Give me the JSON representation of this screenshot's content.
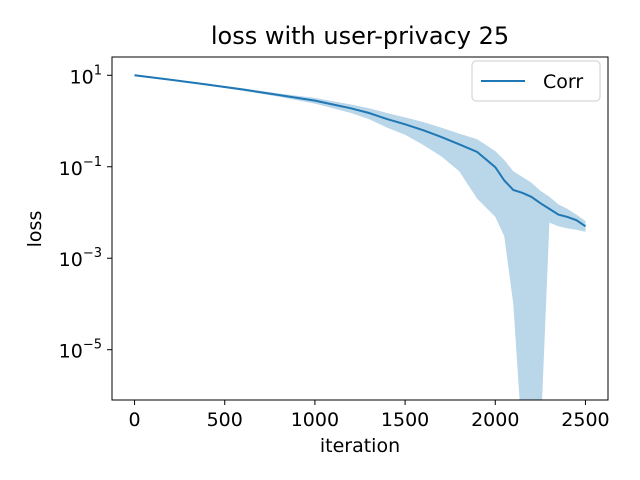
{
  "chart_data": {
    "type": "line",
    "title": "loss with user-privacy  25",
    "xlabel": "iteration",
    "ylabel": "loss",
    "xlim": [
      -125,
      2625
    ],
    "ylim_log10": [
      -6.1,
      1.4
    ],
    "y_scale": "log",
    "x_ticks": [
      0,
      500,
      1000,
      1500,
      2000,
      2500
    ],
    "x_tick_labels": [
      "0",
      "500",
      "1000",
      "1500",
      "2000",
      "2500"
    ],
    "y_ticks_log10": [
      1,
      -1,
      -3,
      -5
    ],
    "y_tick_labels": [
      {
        "base": "10",
        "exp": "1"
      },
      {
        "base": "10",
        "exp": "−1"
      },
      {
        "base": "10",
        "exp": "−3"
      },
      {
        "base": "10",
        "exp": "−5"
      }
    ],
    "grid": false,
    "legend": {
      "position": "top-right",
      "entries": [
        "Corr"
      ]
    },
    "series": [
      {
        "name": "Corr",
        "color": "#1f77b4",
        "band_color": "#a9cce3",
        "x": [
          0,
          200,
          400,
          600,
          800,
          1000,
          1100,
          1200,
          1300,
          1400,
          1500,
          1600,
          1700,
          1800,
          1900,
          2000,
          2050,
          2100,
          2150,
          2200,
          2250,
          2300,
          2350,
          2400,
          2450,
          2500
        ],
        "mean": [
          10.0,
          8.0,
          6.3,
          4.9,
          3.7,
          2.8,
          2.3,
          1.9,
          1.5,
          1.1,
          0.85,
          0.63,
          0.45,
          0.31,
          0.21,
          0.098,
          0.05,
          0.031,
          0.027,
          0.022,
          0.016,
          0.012,
          0.009,
          0.008,
          0.0068,
          0.005
        ],
        "upper": [
          10.5,
          8.3,
          6.6,
          5.2,
          4.0,
          3.2,
          2.7,
          2.3,
          1.9,
          1.5,
          1.2,
          0.95,
          0.72,
          0.53,
          0.4,
          0.22,
          0.14,
          0.08,
          0.06,
          0.045,
          0.03,
          0.022,
          0.015,
          0.012,
          0.009,
          0.0065
        ],
        "lower": [
          9.5,
          7.7,
          6.0,
          4.6,
          3.4,
          2.4,
          1.9,
          1.5,
          1.1,
          0.72,
          0.5,
          0.3,
          0.17,
          0.08,
          0.02,
          0.008,
          0.003,
          0.0001,
          1e-07,
          1e-07,
          1e-07,
          0.006,
          0.005,
          0.0045,
          0.0042,
          0.0038
        ]
      }
    ]
  }
}
